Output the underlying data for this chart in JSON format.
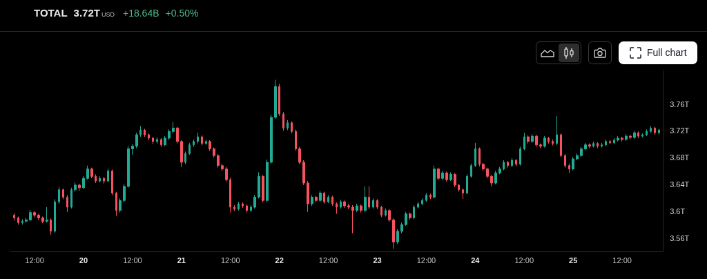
{
  "chart_data": {
    "type": "candlestick",
    "title": "TOTAL",
    "annotations": [
      "3.72T",
      "USD",
      "+18.64B",
      "+0.50%",
      "Full chart"
    ],
    "x": [
      "--10-19T07:00",
      "--10-19T08:00",
      "--10-19T09:00",
      "--10-19T10:00",
      "--10-19T11:00",
      "--10-19T12:00",
      "--10-19T13:00",
      "--10-19T14:00",
      "--10-19T15:00",
      "--10-19T16:00",
      "--10-19T17:00",
      "--10-19T18:00",
      "--10-19T19:00",
      "--10-19T20:00",
      "--10-19T21:00",
      "--10-19T22:00",
      "--10-19T23:00",
      "--10-20T00:00",
      "--10-20T01:00",
      "--10-20T02:00",
      "--10-20T03:00",
      "--10-20T04:00",
      "--10-20T05:00",
      "--10-20T06:00",
      "--10-20T07:00",
      "--10-20T08:00",
      "--10-20T09:00",
      "--10-20T10:00",
      "--10-20T11:00",
      "--10-20T12:00",
      "--10-20T13:00",
      "--10-20T14:00",
      "--10-20T15:00",
      "--10-20T16:00",
      "--10-20T17:00",
      "--10-20T18:00",
      "--10-20T19:00",
      "--10-20T20:00",
      "--10-20T21:00",
      "--10-20T22:00",
      "--10-20T23:00",
      "--10-21T00:00",
      "--10-21T01:00",
      "--10-21T02:00",
      "--10-21T03:00",
      "--10-21T04:00",
      "--10-21T05:00",
      "--10-21T06:00",
      "--10-21T07:00",
      "--10-21T08:00",
      "--10-21T09:00",
      "--10-21T10:00",
      "--10-21T11:00",
      "--10-21T12:00",
      "--10-21T13:00",
      "--10-21T14:00",
      "--10-21T15:00",
      "--10-21T16:00",
      "--10-21T17:00",
      "--10-21T18:00",
      "--10-21T19:00",
      "--10-21T20:00",
      "--10-21T21:00",
      "--10-21T22:00",
      "--10-21T23:00",
      "--10-22T00:00",
      "--10-22T01:00",
      "--10-22T02:00",
      "--10-22T03:00",
      "--10-22T04:00",
      "--10-22T05:00",
      "--10-22T06:00",
      "--10-22T07:00",
      "--10-22T08:00",
      "--10-22T09:00",
      "--10-22T10:00",
      "--10-22T11:00",
      "--10-22T12:00",
      "--10-22T13:00",
      "--10-22T14:00",
      "--10-22T15:00",
      "--10-22T16:00",
      "--10-22T17:00",
      "--10-22T18:00",
      "--10-22T19:00",
      "--10-22T20:00",
      "--10-22T21:00",
      "--10-22T22:00",
      "--10-22T23:00",
      "--10-23T00:00",
      "--10-23T01:00",
      "--10-23T02:00",
      "--10-23T03:00",
      "--10-23T04:00",
      "--10-23T05:00",
      "--10-23T06:00",
      "--10-23T07:00",
      "--10-23T08:00",
      "--10-23T09:00",
      "--10-23T10:00",
      "--10-23T11:00",
      "--10-23T12:00",
      "--10-23T13:00",
      "--10-23T14:00",
      "--10-23T15:00",
      "--10-23T16:00",
      "--10-23T17:00",
      "--10-23T18:00",
      "--10-23T19:00",
      "--10-23T20:00",
      "--10-23T21:00",
      "--10-23T22:00",
      "--10-23T23:00",
      "--10-24T00:00",
      "--10-24T01:00",
      "--10-24T02:00",
      "--10-24T03:00",
      "--10-24T04:00",
      "--10-24T05:00",
      "--10-24T06:00",
      "--10-24T07:00",
      "--10-24T08:00",
      "--10-24T09:00",
      "--10-24T10:00",
      "--10-24T11:00",
      "--10-24T12:00",
      "--10-24T13:00",
      "--10-24T14:00",
      "--10-24T15:00",
      "--10-24T16:00",
      "--10-24T17:00",
      "--10-24T18:00",
      "--10-24T19:00",
      "--10-24T20:00",
      "--10-24T21:00",
      "--10-24T22:00",
      "--10-24T23:00",
      "--10-25T00:00",
      "--10-25T01:00",
      "--10-25T02:00",
      "--10-25T03:00",
      "--10-25T04:00",
      "--10-25T05:00",
      "--10-25T06:00",
      "--10-25T07:00",
      "--10-25T08:00",
      "--10-25T09:00",
      "--10-25T10:00",
      "--10-25T11:00",
      "--10-25T12:00",
      "--10-25T13:00",
      "--10-25T14:00",
      "--10-25T15:00",
      "--10-25T16:00",
      "--10-25T17:00",
      "--10-25T18:00",
      "--10-25T19:00",
      "--10-25T20:00",
      "--10-25T21:00"
    ],
    "ohlc": [
      [
        3.594,
        3.597,
        3.586,
        3.59
      ],
      [
        3.59,
        3.592,
        3.58,
        3.583
      ],
      [
        3.583,
        3.588,
        3.58,
        3.585
      ],
      [
        3.585,
        3.59,
        3.583,
        3.587
      ],
      [
        3.587,
        3.602,
        3.585,
        3.598
      ],
      [
        3.598,
        3.6,
        3.591,
        3.594
      ],
      [
        3.594,
        3.596,
        3.587,
        3.59
      ],
      [
        3.59,
        3.592,
        3.582,
        3.585
      ],
      [
        3.585,
        3.606,
        3.583,
        3.587
      ],
      [
        3.587,
        3.589,
        3.565,
        3.57
      ],
      [
        3.57,
        3.618,
        3.568,
        3.614
      ],
      [
        3.614,
        3.636,
        3.611,
        3.632
      ],
      [
        3.632,
        3.634,
        3.618,
        3.621
      ],
      [
        3.621,
        3.624,
        3.599,
        3.606
      ],
      [
        3.606,
        3.635,
        3.604,
        3.632
      ],
      [
        3.632,
        3.643,
        3.629,
        3.639
      ],
      [
        3.639,
        3.641,
        3.63,
        3.635
      ],
      [
        3.635,
        3.652,
        3.633,
        3.649
      ],
      [
        3.649,
        3.668,
        3.647,
        3.663
      ],
      [
        3.663,
        3.665,
        3.649,
        3.652
      ],
      [
        3.652,
        3.655,
        3.642,
        3.645
      ],
      [
        3.645,
        3.652,
        3.643,
        3.649
      ],
      [
        3.649,
        3.651,
        3.641,
        3.645
      ],
      [
        3.645,
        3.663,
        3.643,
        3.66
      ],
      [
        3.66,
        3.662,
        3.624,
        3.627
      ],
      [
        3.627,
        3.629,
        3.593,
        3.601
      ],
      [
        3.601,
        3.619,
        3.598,
        3.616
      ],
      [
        3.616,
        3.64,
        3.613,
        3.637
      ],
      [
        3.637,
        3.697,
        3.635,
        3.693
      ],
      [
        3.693,
        3.7,
        3.684,
        3.697
      ],
      [
        3.697,
        3.717,
        3.694,
        3.714
      ],
      [
        3.714,
        3.727,
        3.711,
        3.721
      ],
      [
        3.721,
        3.723,
        3.711,
        3.714
      ],
      [
        3.714,
        3.716,
        3.706,
        3.709
      ],
      [
        3.709,
        3.711,
        3.7,
        3.704
      ],
      [
        3.704,
        3.71,
        3.701,
        3.707
      ],
      [
        3.707,
        3.709,
        3.696,
        3.699
      ],
      [
        3.699,
        3.712,
        3.697,
        3.709
      ],
      [
        3.709,
        3.722,
        3.706,
        3.719
      ],
      [
        3.719,
        3.733,
        3.716,
        3.724
      ],
      [
        3.724,
        3.726,
        3.701,
        3.704
      ],
      [
        3.704,
        3.706,
        3.666,
        3.673
      ],
      [
        3.673,
        3.689,
        3.67,
        3.686
      ],
      [
        3.686,
        3.702,
        3.684,
        3.699
      ],
      [
        3.699,
        3.707,
        3.696,
        3.704
      ],
      [
        3.704,
        3.717,
        3.701,
        3.711
      ],
      [
        3.711,
        3.713,
        3.698,
        3.701
      ],
      [
        3.701,
        3.707,
        3.699,
        3.704
      ],
      [
        3.704,
        3.706,
        3.69,
        3.693
      ],
      [
        3.693,
        3.695,
        3.68,
        3.683
      ],
      [
        3.683,
        3.685,
        3.665,
        3.668
      ],
      [
        3.668,
        3.671,
        3.66,
        3.663
      ],
      [
        3.663,
        3.666,
        3.644,
        3.647
      ],
      [
        3.647,
        3.65,
        3.598,
        3.606
      ],
      [
        3.606,
        3.609,
        3.6,
        3.603
      ],
      [
        3.603,
        3.614,
        3.601,
        3.611
      ],
      [
        3.611,
        3.613,
        3.605,
        3.608
      ],
      [
        3.608,
        3.61,
        3.598,
        3.601
      ],
      [
        3.601,
        3.609,
        3.599,
        3.606
      ],
      [
        3.606,
        3.624,
        3.604,
        3.621
      ],
      [
        3.621,
        3.658,
        3.619,
        3.652
      ],
      [
        3.652,
        3.654,
        3.613,
        3.616
      ],
      [
        3.616,
        3.677,
        3.614,
        3.673
      ],
      [
        3.673,
        3.744,
        3.671,
        3.74
      ],
      [
        3.74,
        3.796,
        3.738,
        3.786
      ],
      [
        3.786,
        3.79,
        3.742,
        3.745
      ],
      [
        3.745,
        3.748,
        3.72,
        3.724
      ],
      [
        3.724,
        3.736,
        3.721,
        3.732
      ],
      [
        3.732,
        3.734,
        3.716,
        3.719
      ],
      [
        3.719,
        3.722,
        3.69,
        3.693
      ],
      [
        3.693,
        3.696,
        3.67,
        3.673
      ],
      [
        3.673,
        3.676,
        3.639,
        3.642
      ],
      [
        3.642,
        3.645,
        3.599,
        3.611
      ],
      [
        3.611,
        3.624,
        3.608,
        3.621
      ],
      [
        3.621,
        3.623,
        3.613,
        3.616
      ],
      [
        3.616,
        3.63,
        3.614,
        3.627
      ],
      [
        3.627,
        3.629,
        3.611,
        3.614
      ],
      [
        3.614,
        3.624,
        3.612,
        3.621
      ],
      [
        3.621,
        3.623,
        3.608,
        3.611
      ],
      [
        3.611,
        3.613,
        3.596,
        3.606
      ],
      [
        3.606,
        3.617,
        3.604,
        3.614
      ],
      [
        3.614,
        3.616,
        3.605,
        3.608
      ],
      [
        3.608,
        3.611,
        3.603,
        3.606
      ],
      [
        3.606,
        3.609,
        3.567,
        3.601
      ],
      [
        3.601,
        3.611,
        3.599,
        3.608
      ],
      [
        3.608,
        3.61,
        3.598,
        3.601
      ],
      [
        3.601,
        3.637,
        3.599,
        3.621
      ],
      [
        3.621,
        3.637,
        3.603,
        3.606
      ],
      [
        3.606,
        3.619,
        3.604,
        3.616
      ],
      [
        3.616,
        3.618,
        3.603,
        3.606
      ],
      [
        3.606,
        3.608,
        3.591,
        3.594
      ],
      [
        3.594,
        3.604,
        3.592,
        3.601
      ],
      [
        3.601,
        3.603,
        3.584,
        3.587
      ],
      [
        3.587,
        3.589,
        3.544,
        3.554
      ],
      [
        3.554,
        3.573,
        3.551,
        3.57
      ],
      [
        3.57,
        3.583,
        3.567,
        3.58
      ],
      [
        3.58,
        3.599,
        3.578,
        3.596
      ],
      [
        3.596,
        3.598,
        3.587,
        3.59
      ],
      [
        3.59,
        3.609,
        3.588,
        3.606
      ],
      [
        3.606,
        3.614,
        3.604,
        3.611
      ],
      [
        3.611,
        3.619,
        3.609,
        3.616
      ],
      [
        3.616,
        3.627,
        3.614,
        3.624
      ],
      [
        3.624,
        3.626,
        3.618,
        3.621
      ],
      [
        3.621,
        3.668,
        3.619,
        3.663
      ],
      [
        3.663,
        3.665,
        3.646,
        3.649
      ],
      [
        3.649,
        3.66,
        3.647,
        3.657
      ],
      [
        3.657,
        3.659,
        3.644,
        3.647
      ],
      [
        3.647,
        3.658,
        3.645,
        3.655
      ],
      [
        3.655,
        3.657,
        3.636,
        3.639
      ],
      [
        3.639,
        3.641,
        3.629,
        3.632
      ],
      [
        3.632,
        3.634,
        3.618,
        3.627
      ],
      [
        3.627,
        3.655,
        3.625,
        3.652
      ],
      [
        3.652,
        3.671,
        3.65,
        3.668
      ],
      [
        3.668,
        3.702,
        3.666,
        3.693
      ],
      [
        3.693,
        3.695,
        3.667,
        3.67
      ],
      [
        3.67,
        3.672,
        3.66,
        3.663
      ],
      [
        3.663,
        3.665,
        3.649,
        3.652
      ],
      [
        3.652,
        3.654,
        3.637,
        3.642
      ],
      [
        3.642,
        3.66,
        3.64,
        3.657
      ],
      [
        3.657,
        3.666,
        3.655,
        3.663
      ],
      [
        3.663,
        3.676,
        3.661,
        3.673
      ],
      [
        3.673,
        3.675,
        3.665,
        3.668
      ],
      [
        3.668,
        3.679,
        3.666,
        3.676
      ],
      [
        3.676,
        3.678,
        3.667,
        3.67
      ],
      [
        3.67,
        3.696,
        3.668,
        3.693
      ],
      [
        3.693,
        3.717,
        3.691,
        3.711
      ],
      [
        3.711,
        3.713,
        3.701,
        3.704
      ],
      [
        3.704,
        3.715,
        3.702,
        3.712
      ],
      [
        3.712,
        3.714,
        3.696,
        3.699
      ],
      [
        3.699,
        3.701,
        3.694,
        3.697
      ],
      [
        3.697,
        3.712,
        3.695,
        3.709
      ],
      [
        3.709,
        3.711,
        3.701,
        3.704
      ],
      [
        3.704,
        3.707,
        3.698,
        3.701
      ],
      [
        3.701,
        3.742,
        3.699,
        3.714
      ],
      [
        3.714,
        3.716,
        3.68,
        3.683
      ],
      [
        3.683,
        3.685,
        3.665,
        3.668
      ],
      [
        3.668,
        3.671,
        3.657,
        3.663
      ],
      [
        3.663,
        3.681,
        3.661,
        3.678
      ],
      [
        3.678,
        3.686,
        3.676,
        3.683
      ],
      [
        3.683,
        3.696,
        3.681,
        3.693
      ],
      [
        3.693,
        3.702,
        3.691,
        3.699
      ],
      [
        3.699,
        3.701,
        3.694,
        3.697
      ],
      [
        3.697,
        3.704,
        3.695,
        3.701
      ],
      [
        3.701,
        3.703,
        3.694,
        3.697
      ],
      [
        3.697,
        3.702,
        3.695,
        3.699
      ],
      [
        3.699,
        3.707,
        3.697,
        3.704
      ],
      [
        3.704,
        3.706,
        3.7,
        3.702
      ],
      [
        3.702,
        3.709,
        3.7,
        3.706
      ],
      [
        3.706,
        3.712,
        3.704,
        3.709
      ],
      [
        3.709,
        3.711,
        3.704,
        3.707
      ],
      [
        3.707,
        3.715,
        3.705,
        3.712
      ],
      [
        3.712,
        3.714,
        3.707,
        3.71
      ],
      [
        3.71,
        3.72,
        3.708,
        3.717
      ],
      [
        3.717,
        3.719,
        3.709,
        3.712
      ],
      [
        3.712,
        3.716,
        3.71,
        3.714
      ],
      [
        3.714,
        3.722,
        3.712,
        3.719
      ],
      [
        3.719,
        3.727,
        3.717,
        3.724
      ],
      [
        3.724,
        3.726,
        3.714,
        3.717
      ],
      [
        3.717,
        3.723,
        3.715,
        3.721
      ]
    ],
    "xlim": [
      "--10-19T06:00",
      "--10-25T22:00"
    ],
    "xticks": [
      {
        "value": "--10-19T12:00",
        "label": "12:00"
      },
      {
        "value": "--10-20",
        "label": "20"
      },
      {
        "value": "--10-20T12:00",
        "label": "12:00"
      },
      {
        "value": "--10-21",
        "label": "21"
      },
      {
        "value": "--10-21T12:00",
        "label": "12:00"
      },
      {
        "value": "--10-22",
        "label": "22"
      },
      {
        "value": "--10-22T12:00",
        "label": "12:00"
      },
      {
        "value": "--10-23",
        "label": "23"
      },
      {
        "value": "--10-23T12:00",
        "label": "12:00"
      },
      {
        "value": "--10-24",
        "label": "24"
      },
      {
        "value": "--10-24T12:00",
        "label": "12:00"
      },
      {
        "value": "--10-25",
        "label": "25"
      },
      {
        "value": "--10-25T12:00",
        "label": "12:00"
      }
    ],
    "ylim": [
      3.54,
      3.81
    ],
    "yticks": [
      {
        "value": 3.56,
        "label": "3.56T"
      },
      {
        "value": 3.6,
        "label": "3.6T"
      },
      {
        "value": 3.64,
        "label": "3.64T"
      },
      {
        "value": 3.68,
        "label": "3.68T"
      },
      {
        "value": 3.72,
        "label": "3.72T"
      },
      {
        "value": 3.76,
        "label": "3.76T"
      }
    ]
  }
}
